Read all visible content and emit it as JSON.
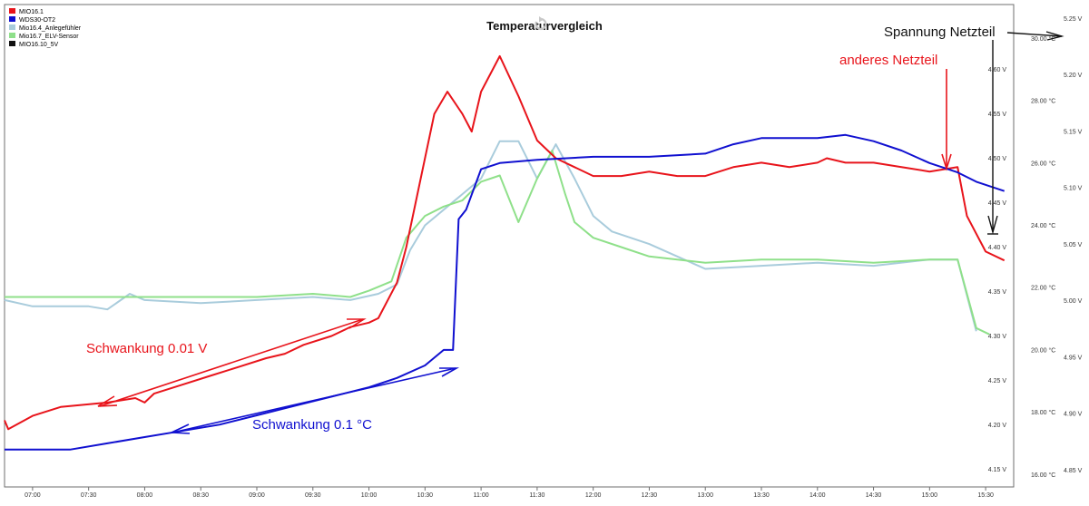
{
  "chart_data": {
    "type": "line",
    "title": "Temperaturvergleich",
    "x_ticks": [
      "07:00",
      "07:30",
      "08:00",
      "08:30",
      "09:00",
      "09:30",
      "10:00",
      "10:30",
      "11:00",
      "11:30",
      "12:00",
      "12:30",
      "13:00",
      "13:30",
      "14:00",
      "14:30",
      "15:00",
      "15:30"
    ],
    "x_range": [
      "06:45",
      "15:45"
    ],
    "axes": {
      "volt_left": {
        "unit": "V",
        "ticks": [
          "4.15 V",
          "4.20 V",
          "4.25 V",
          "4.30 V",
          "4.35 V",
          "4.40 V",
          "4.45 V",
          "4.50 V",
          "4.55 V",
          "4.60 V"
        ],
        "range": [
          4.13,
          4.67
        ]
      },
      "temp": {
        "unit": "°C",
        "ticks": [
          "16.00 °C",
          "18.00 °C",
          "20.00 °C",
          "22.00 °C",
          "24.00 °C",
          "26.00 °C",
          "28.00 °C",
          "30.00 °C"
        ],
        "range": [
          15.6,
          31.0
        ]
      },
      "volt_right": {
        "unit": "V",
        "ticks": [
          "4.85 V",
          "4.90 V",
          "4.95 V",
          "5.00 V",
          "5.05 V",
          "5.10 V",
          "5.15 V",
          "5.20 V",
          "5.25 V"
        ],
        "range": [
          4.835,
          5.26
        ]
      }
    },
    "grid": false,
    "legend_position": "top-left",
    "legend": [
      {
        "name": "MIO16.1",
        "color": "#e8141b"
      },
      {
        "name": "WDS30-OT2",
        "color": "#1010d0"
      },
      {
        "name": "Mio16.4_Anlegefühler",
        "color": "#a9ccdc"
      },
      {
        "name": "Mio16.7_ELV-Sensor",
        "color": "#8fe08a"
      },
      {
        "name": "MIO16.10_5V",
        "color": "#111111"
      }
    ],
    "series": [
      {
        "name": "MIO16.1",
        "axis": "volt_left",
        "color": "#e8141b",
        "points": [
          [
            "06:45",
            4.205
          ],
          [
            "06:47",
            4.195
          ],
          [
            "07:00",
            4.21
          ],
          [
            "07:15",
            4.22
          ],
          [
            "07:40",
            4.225
          ],
          [
            "07:55",
            4.23
          ],
          [
            "08:00",
            4.225
          ],
          [
            "08:05",
            4.235
          ],
          [
            "08:20",
            4.245
          ],
          [
            "08:35",
            4.255
          ],
          [
            "08:50",
            4.265
          ],
          [
            "09:05",
            4.275
          ],
          [
            "09:15",
            4.28
          ],
          [
            "09:25",
            4.29
          ],
          [
            "09:40",
            4.3
          ],
          [
            "09:50",
            4.31
          ],
          [
            "10:00",
            4.315
          ],
          [
            "10:05",
            4.32
          ],
          [
            "10:15",
            4.36
          ],
          [
            "10:20",
            4.4
          ],
          [
            "10:25",
            4.45
          ],
          [
            "10:30",
            4.5
          ],
          [
            "10:35",
            4.55
          ],
          [
            "10:42",
            4.575
          ],
          [
            "10:50",
            4.55
          ],
          [
            "10:55",
            4.53
          ],
          [
            "11:00",
            4.575
          ],
          [
            "11:10",
            4.615
          ],
          [
            "11:20",
            4.57
          ],
          [
            "11:30",
            4.52
          ],
          [
            "11:40",
            4.5
          ],
          [
            "11:50",
            4.49
          ],
          [
            "12:00",
            4.48
          ],
          [
            "12:15",
            4.48
          ],
          [
            "12:30",
            4.485
          ],
          [
            "12:45",
            4.48
          ],
          [
            "13:00",
            4.48
          ],
          [
            "13:15",
            4.49
          ],
          [
            "13:30",
            4.495
          ],
          [
            "13:45",
            4.49
          ],
          [
            "14:00",
            4.495
          ],
          [
            "14:05",
            4.5
          ],
          [
            "14:15",
            4.495
          ],
          [
            "14:30",
            4.495
          ],
          [
            "14:45",
            4.49
          ],
          [
            "15:00",
            4.485
          ],
          [
            "15:15",
            4.49
          ],
          [
            "15:20",
            4.435
          ],
          [
            "15:30",
            4.395
          ],
          [
            "15:40",
            4.385
          ]
        ]
      },
      {
        "name": "WDS30-OT2",
        "axis": "temp",
        "color": "#1010d0",
        "points": [
          [
            "06:45",
            16.8
          ],
          [
            "07:20",
            16.8
          ],
          [
            "07:40",
            17.0
          ],
          [
            "08:00",
            17.2
          ],
          [
            "08:20",
            17.4
          ],
          [
            "08:40",
            17.6
          ],
          [
            "09:00",
            17.9
          ],
          [
            "09:20",
            18.2
          ],
          [
            "09:40",
            18.5
          ],
          [
            "10:00",
            18.8
          ],
          [
            "10:15",
            19.1
          ],
          [
            "10:30",
            19.5
          ],
          [
            "10:40",
            20.0
          ],
          [
            "10:45",
            20.0
          ],
          [
            "10:48",
            24.2
          ],
          [
            "10:52",
            24.5
          ],
          [
            "11:00",
            25.8
          ],
          [
            "11:10",
            26.0
          ],
          [
            "11:30",
            26.1
          ],
          [
            "12:00",
            26.2
          ],
          [
            "12:30",
            26.2
          ],
          [
            "13:00",
            26.3
          ],
          [
            "13:15",
            26.6
          ],
          [
            "13:30",
            26.8
          ],
          [
            "14:00",
            26.8
          ],
          [
            "14:15",
            26.9
          ],
          [
            "14:30",
            26.7
          ],
          [
            "14:45",
            26.4
          ],
          [
            "15:00",
            26.0
          ],
          [
            "15:15",
            25.7
          ],
          [
            "15:25",
            25.4
          ],
          [
            "15:40",
            25.1
          ]
        ]
      },
      {
        "name": "Mio16.4_Anlegefühler",
        "axis": "temp",
        "color": "#a9ccdc",
        "points": [
          [
            "06:45",
            21.6
          ],
          [
            "07:00",
            21.4
          ],
          [
            "07:30",
            21.4
          ],
          [
            "07:40",
            21.3
          ],
          [
            "07:52",
            21.8
          ],
          [
            "08:00",
            21.6
          ],
          [
            "08:30",
            21.5
          ],
          [
            "09:00",
            21.6
          ],
          [
            "09:30",
            21.7
          ],
          [
            "09:50",
            21.6
          ],
          [
            "10:05",
            21.8
          ],
          [
            "10:15",
            22.1
          ],
          [
            "10:22",
            23.2
          ],
          [
            "10:30",
            24.0
          ],
          [
            "10:40",
            24.5
          ],
          [
            "10:50",
            25.0
          ],
          [
            "11:00",
            25.5
          ],
          [
            "11:10",
            26.7
          ],
          [
            "11:20",
            26.7
          ],
          [
            "11:30",
            25.5
          ],
          [
            "11:40",
            26.6
          ],
          [
            "11:50",
            25.5
          ],
          [
            "12:00",
            24.3
          ],
          [
            "12:10",
            23.8
          ],
          [
            "12:20",
            23.6
          ],
          [
            "12:30",
            23.4
          ],
          [
            "12:45",
            23.0
          ],
          [
            "13:00",
            22.6
          ],
          [
            "13:30",
            22.7
          ],
          [
            "14:00",
            22.8
          ],
          [
            "14:30",
            22.7
          ],
          [
            "15:00",
            22.9
          ],
          [
            "15:15",
            22.9
          ],
          [
            "15:25",
            20.6
          ]
        ]
      },
      {
        "name": "Mio16.7_ELV-Sensor",
        "axis": "temp",
        "color": "#8fe08a",
        "points": [
          [
            "06:45",
            21.7
          ],
          [
            "07:00",
            21.7
          ],
          [
            "07:50",
            21.7
          ],
          [
            "08:00",
            21.7
          ],
          [
            "08:30",
            21.7
          ],
          [
            "09:00",
            21.7
          ],
          [
            "09:30",
            21.8
          ],
          [
            "09:50",
            21.7
          ],
          [
            "10:00",
            21.9
          ],
          [
            "10:12",
            22.2
          ],
          [
            "10:20",
            23.6
          ],
          [
            "10:30",
            24.3
          ],
          [
            "10:40",
            24.6
          ],
          [
            "10:50",
            24.8
          ],
          [
            "11:00",
            25.4
          ],
          [
            "11:10",
            25.6
          ],
          [
            "11:20",
            24.1
          ],
          [
            "11:30",
            25.5
          ],
          [
            "11:38",
            26.4
          ],
          [
            "11:45",
            25.0
          ],
          [
            "11:50",
            24.1
          ],
          [
            "12:00",
            23.6
          ],
          [
            "12:15",
            23.3
          ],
          [
            "12:30",
            23.0
          ],
          [
            "13:00",
            22.8
          ],
          [
            "13:30",
            22.9
          ],
          [
            "14:00",
            22.9
          ],
          [
            "14:30",
            22.8
          ],
          [
            "15:00",
            22.9
          ],
          [
            "15:15",
            22.9
          ],
          [
            "15:25",
            20.7
          ],
          [
            "15:32",
            20.5
          ]
        ]
      },
      {
        "name": "MIO16.10_5V",
        "axis": "volt_right",
        "color": "#111111",
        "points": []
      }
    ],
    "annotations": [
      {
        "text": "Schwankung 0.01 V",
        "color": "#e8141b"
      },
      {
        "text": "Schwankung 0.1 °C",
        "color": "#1010d0"
      },
      {
        "text": "anderes Netzteil",
        "color": "#e8141b"
      },
      {
        "text": "Spannung Netzteil",
        "color": "#111111"
      }
    ]
  }
}
